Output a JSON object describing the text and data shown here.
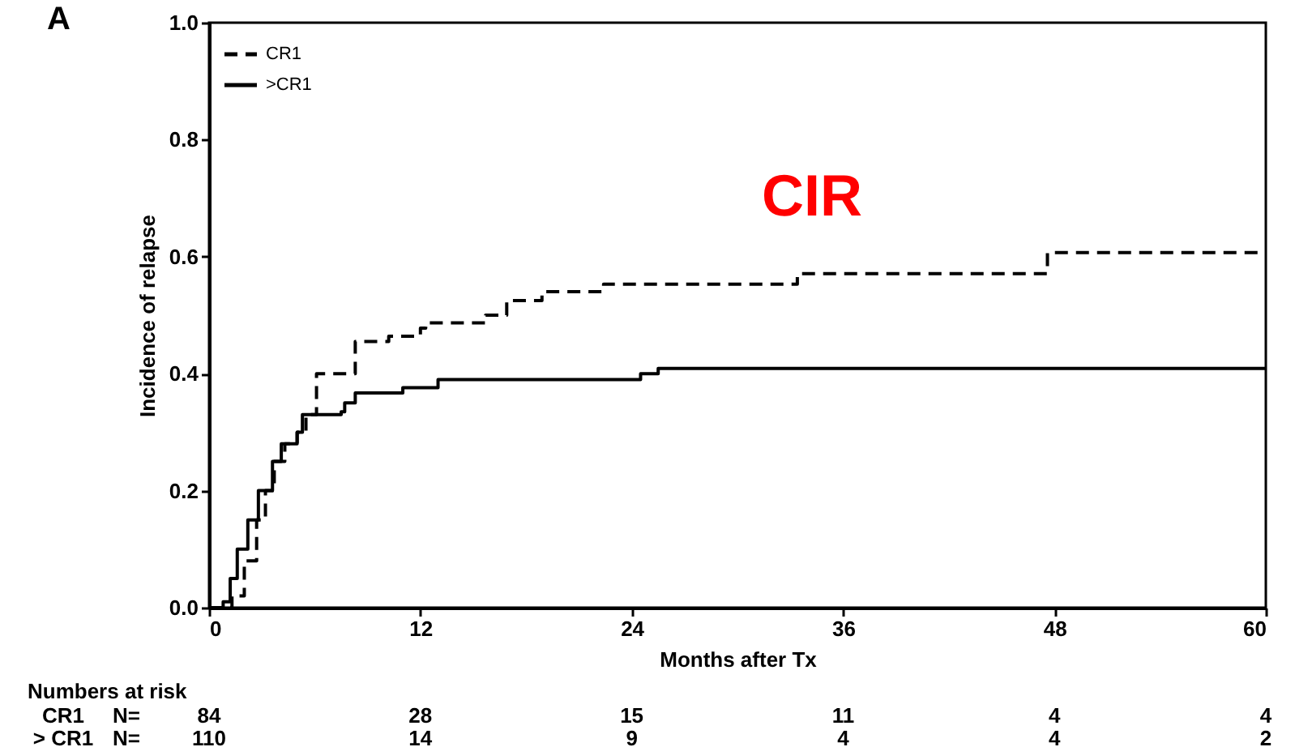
{
  "chart_data": {
    "type": "step",
    "xlabel": "Months after Tx",
    "ylabel": "Incidence of relapse",
    "xlim": [
      0,
      60
    ],
    "ylim": [
      0,
      1
    ],
    "xticks": [
      0,
      12,
      24,
      36,
      48,
      60
    ],
    "yticks": [
      {
        "value": 0,
        "label": "0.0"
      },
      {
        "value": 0.2,
        "label": "0.2"
      },
      {
        "value": 0.4,
        "label": "0.4"
      },
      {
        "value": 0.6,
        "label": "0.6"
      },
      {
        "value": 0.8,
        "label": "0.8"
      },
      {
        "value": 1,
        "label": "1.0"
      }
    ],
    "grid": false,
    "legend": "top left",
    "marker": "none",
    "annotations": [
      "A",
      "CIR",
      "Numbers at risk",
      "CR1",
      "N=",
      "84",
      "28",
      "15",
      "11",
      "4",
      "4",
      "> CR1",
      "N=",
      "110",
      "14",
      "9",
      "4",
      "4",
      "2"
    ],
    "series": [
      {
        "name": "CR1",
        "color": "#000000",
        "line_style": "dashed",
        "x": [
          0,
          1.3,
          2,
          2.7,
          3.2,
          3.7,
          4.3,
          5,
          5.5,
          6.1,
          8.3,
          10.2,
          12,
          12.3,
          15.7,
          16.9,
          18.9,
          22.4,
          33.4,
          47.6,
          60
        ],
        "values": [
          0,
          0.02,
          0.08,
          0.15,
          0.2,
          0.25,
          0.28,
          0.3,
          0.33,
          0.4,
          0.455,
          0.464,
          0.478,
          0.487,
          0.5,
          0.525,
          0.54,
          0.553,
          0.571,
          0.607,
          0.607
        ]
      },
      {
        "name": ">CR1",
        "color": "#000000",
        "line_style": "solid",
        "x": [
          0,
          0.8,
          1.2,
          1.6,
          2.2,
          2.8,
          3.6,
          4.1,
          5,
          5.3,
          7.5,
          7.7,
          8.3,
          11,
          13,
          24.5,
          25.5,
          60
        ],
        "values": [
          0,
          0.01,
          0.05,
          0.1,
          0.15,
          0.2,
          0.25,
          0.28,
          0.3,
          0.33,
          0.335,
          0.35,
          0.367,
          0.376,
          0.39,
          0.4,
          0.409,
          0.409
        ]
      }
    ]
  }
}
